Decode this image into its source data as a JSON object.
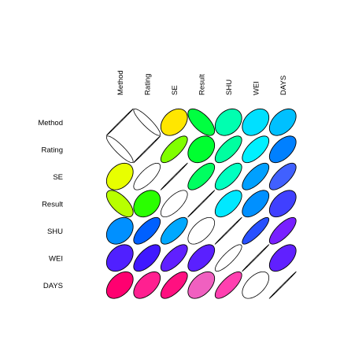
{
  "chart_data": {
    "type": "heatmap",
    "title": "",
    "row_labels": [
      "Method",
      "Rating",
      "SE",
      "Result",
      "SHU",
      "WEI",
      "DAYS"
    ],
    "col_labels": [
      "Method",
      "Rating",
      "SE",
      "Result",
      "SHU",
      "WEI",
      "DAYS"
    ],
    "glyph": "ellipse",
    "matrix": [
      [
        1.0,
        -0.9,
        0.35,
        -0.65,
        0.3,
        0.35,
        0.45
      ],
      [
        -0.9,
        1.0,
        0.75,
        0.3,
        0.7,
        0.65,
        0.55
      ],
      [
        0.35,
        0.75,
        1.0,
        0.7,
        0.7,
        0.7,
        0.7
      ],
      [
        -0.65,
        0.3,
        0.7,
        1.0,
        0.6,
        0.6,
        0.5
      ],
      [
        0.3,
        0.7,
        0.7,
        0.6,
        1.0,
        0.85,
        0.75
      ],
      [
        0.35,
        0.65,
        0.7,
        0.6,
        0.85,
        1.0,
        0.55
      ],
      [
        0.45,
        0.55,
        0.7,
        0.5,
        0.75,
        0.55,
        1.0
      ]
    ],
    "fill_lower": [
      [
        null,
        null,
        null,
        null,
        null,
        null,
        null
      ],
      [
        null,
        null,
        null,
        null,
        null,
        null,
        null
      ],
      [
        "#E8FF00",
        null,
        null,
        null,
        null,
        null,
        null
      ],
      [
        "#B8FF00",
        "#2AFF00",
        null,
        null,
        null,
        null,
        null
      ],
      [
        "#0090FF",
        "#0060FF",
        "#00A8FF",
        null,
        null,
        null,
        null
      ],
      [
        "#5020FF",
        "#4018FF",
        "#6020FF",
        "#5A20FF",
        null,
        null,
        null
      ],
      [
        "#FF0070",
        "#FF2090",
        "#FF1080",
        "#F060C0",
        "#FF40B0",
        null,
        null
      ]
    ],
    "fill_upper": [
      [
        null,
        null,
        "#FFE600",
        "#00FF40",
        "#00FFB0",
        "#00E0FF",
        "#00C0FF"
      ],
      [
        null,
        null,
        "#80FF00",
        "#00FF30",
        "#00FFA0",
        "#00F0FF",
        "#0080FF"
      ],
      [
        null,
        null,
        null,
        "#00FF60",
        "#00FFC0",
        "#00A0FF",
        "#4060FF"
      ],
      [
        null,
        null,
        null,
        null,
        "#00E8FF",
        "#0090FF",
        "#4040FF"
      ],
      [
        null,
        null,
        null,
        null,
        null,
        "#2850FF",
        "#7820FF"
      ],
      [
        null,
        null,
        null,
        null,
        null,
        null,
        "#6020FF"
      ],
      [
        null,
        null,
        null,
        null,
        null,
        null,
        null
      ]
    ]
  }
}
